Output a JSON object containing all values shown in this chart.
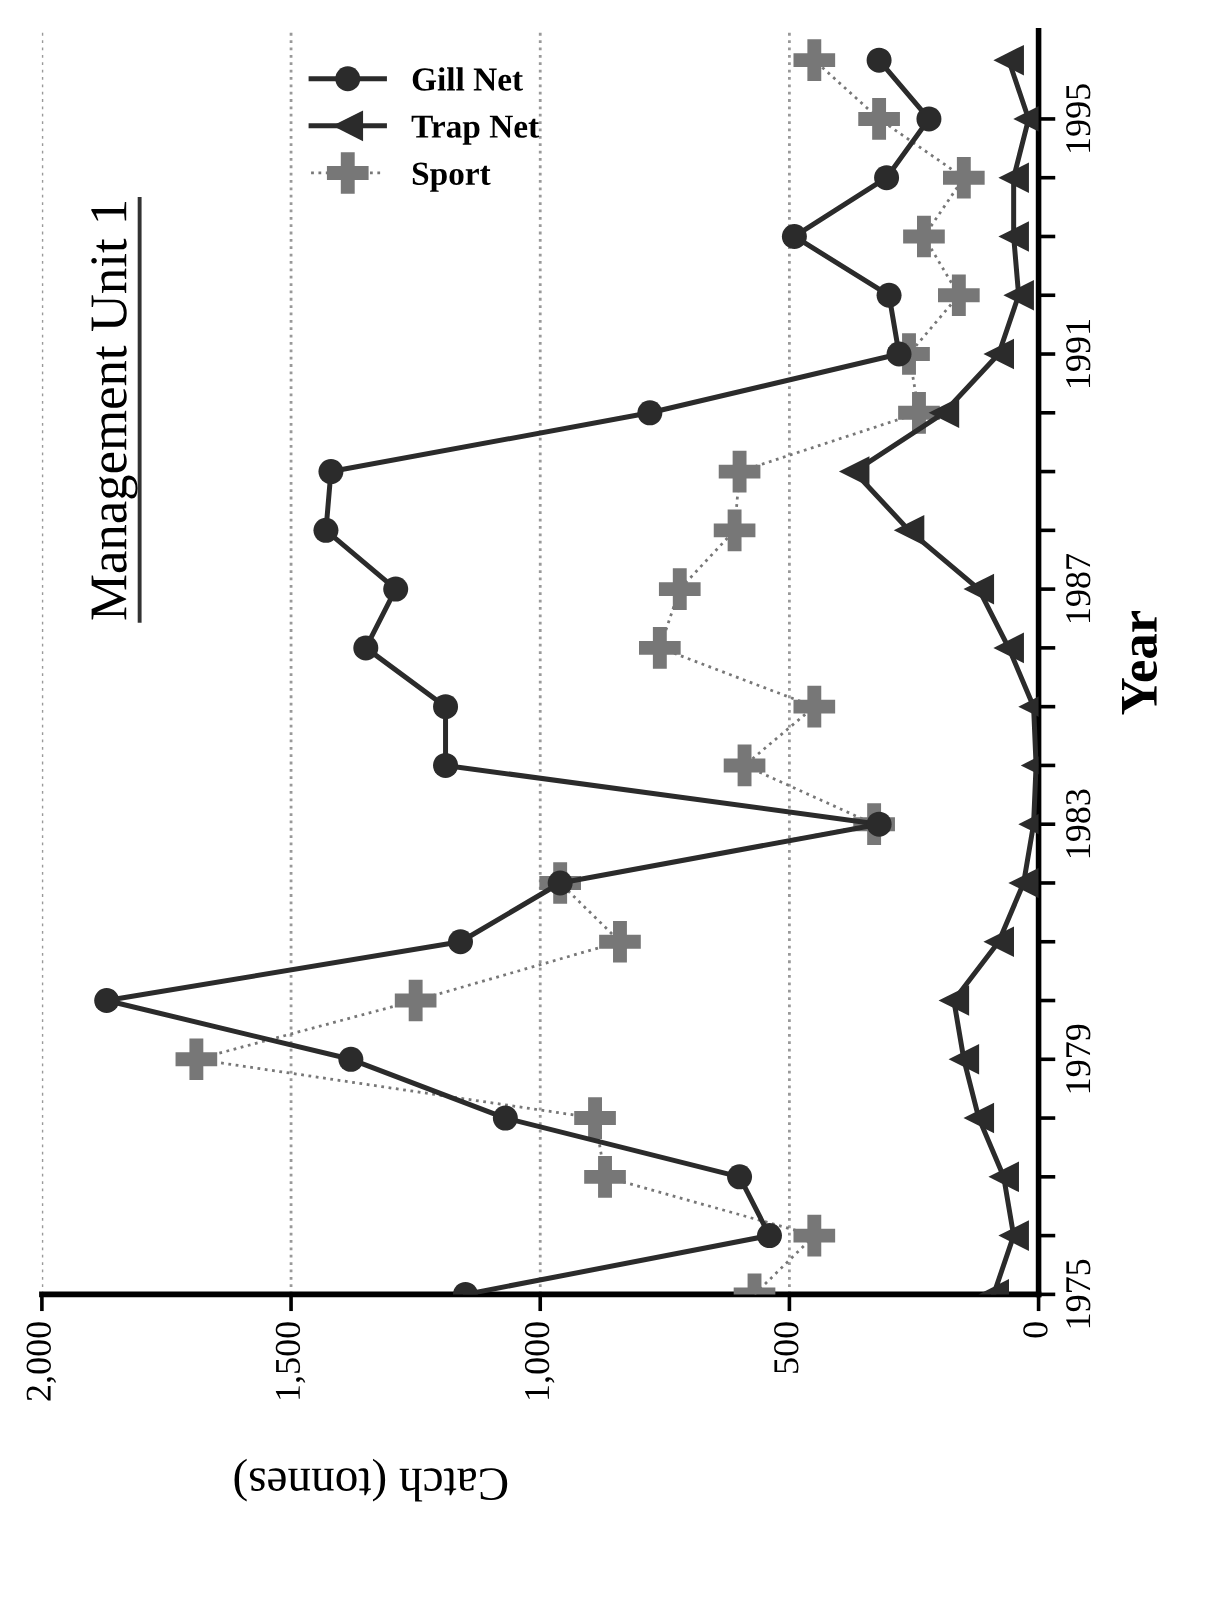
{
  "chart_data": {
    "type": "line",
    "title": "Management Unit 1",
    "xlabel": "Catch (tonnes)",
    "ylabel": "Year",
    "orientation": "horizontal",
    "x": [
      1975,
      1976,
      1977,
      1978,
      1979,
      1980,
      1981,
      1982,
      1983,
      1984,
      1985,
      1986,
      1987,
      1988,
      1989,
      1990,
      1991,
      1992,
      1993,
      1994,
      1995,
      1996
    ],
    "series": [
      {
        "name": "Gill Net",
        "color": "#2b2b2b",
        "marker": "circle",
        "line_style": "solid",
        "values": [
          1150,
          540,
          600,
          1070,
          1380,
          1870,
          1160,
          960,
          320,
          1190,
          1190,
          1350,
          1290,
          1430,
          1420,
          780,
          280,
          300,
          490,
          305,
          220,
          320
        ]
      },
      {
        "name": "Trap Net",
        "color": "#2b2b2b",
        "marker": "triangle",
        "line_style": "solid",
        "values": [
          90,
          50,
          70,
          120,
          150,
          170,
          80,
          30,
          10,
          5,
          10,
          60,
          120,
          260,
          370,
          190,
          80,
          40,
          50,
          50,
          20,
          60
        ]
      },
      {
        "name": "Sport",
        "color": "#777777",
        "marker": "cross",
        "line_style": "dotted",
        "values": [
          570,
          450,
          870,
          890,
          1690,
          1250,
          840,
          960,
          330,
          590,
          450,
          760,
          720,
          610,
          600,
          240,
          260,
          160,
          230,
          150,
          320,
          450
        ]
      }
    ],
    "xlim": [
      2000,
      0
    ],
    "xticks": [
      {
        "value": 2000,
        "label": "2,000"
      },
      {
        "value": 1500,
        "label": "1,500"
      },
      {
        "value": 1000,
        "label": "1,000"
      },
      500,
      0
    ],
    "ylim": [
      1975,
      1996.5
    ],
    "yticks": [
      1975,
      {
        "value": 1976,
        "label": null
      },
      {
        "value": 1977,
        "label": null
      },
      {
        "value": 1978,
        "label": null
      },
      1979,
      {
        "value": 1980,
        "label": null
      },
      {
        "value": 1981,
        "label": null
      },
      {
        "value": 1982,
        "label": null
      },
      1983,
      {
        "value": 1984,
        "label": null
      },
      {
        "value": 1985,
        "label": null
      },
      {
        "value": 1986,
        "label": null
      },
      1987,
      {
        "value": 1988,
        "label": null
      },
      {
        "value": 1989,
        "label": null
      },
      {
        "value": 1990,
        "label": null
      },
      1991,
      {
        "value": 1992,
        "label": null
      },
      {
        "value": 1993,
        "label": null
      },
      {
        "value": 1994,
        "label": null
      },
      1995
    ],
    "grid": "x",
    "legend": "top left"
  }
}
